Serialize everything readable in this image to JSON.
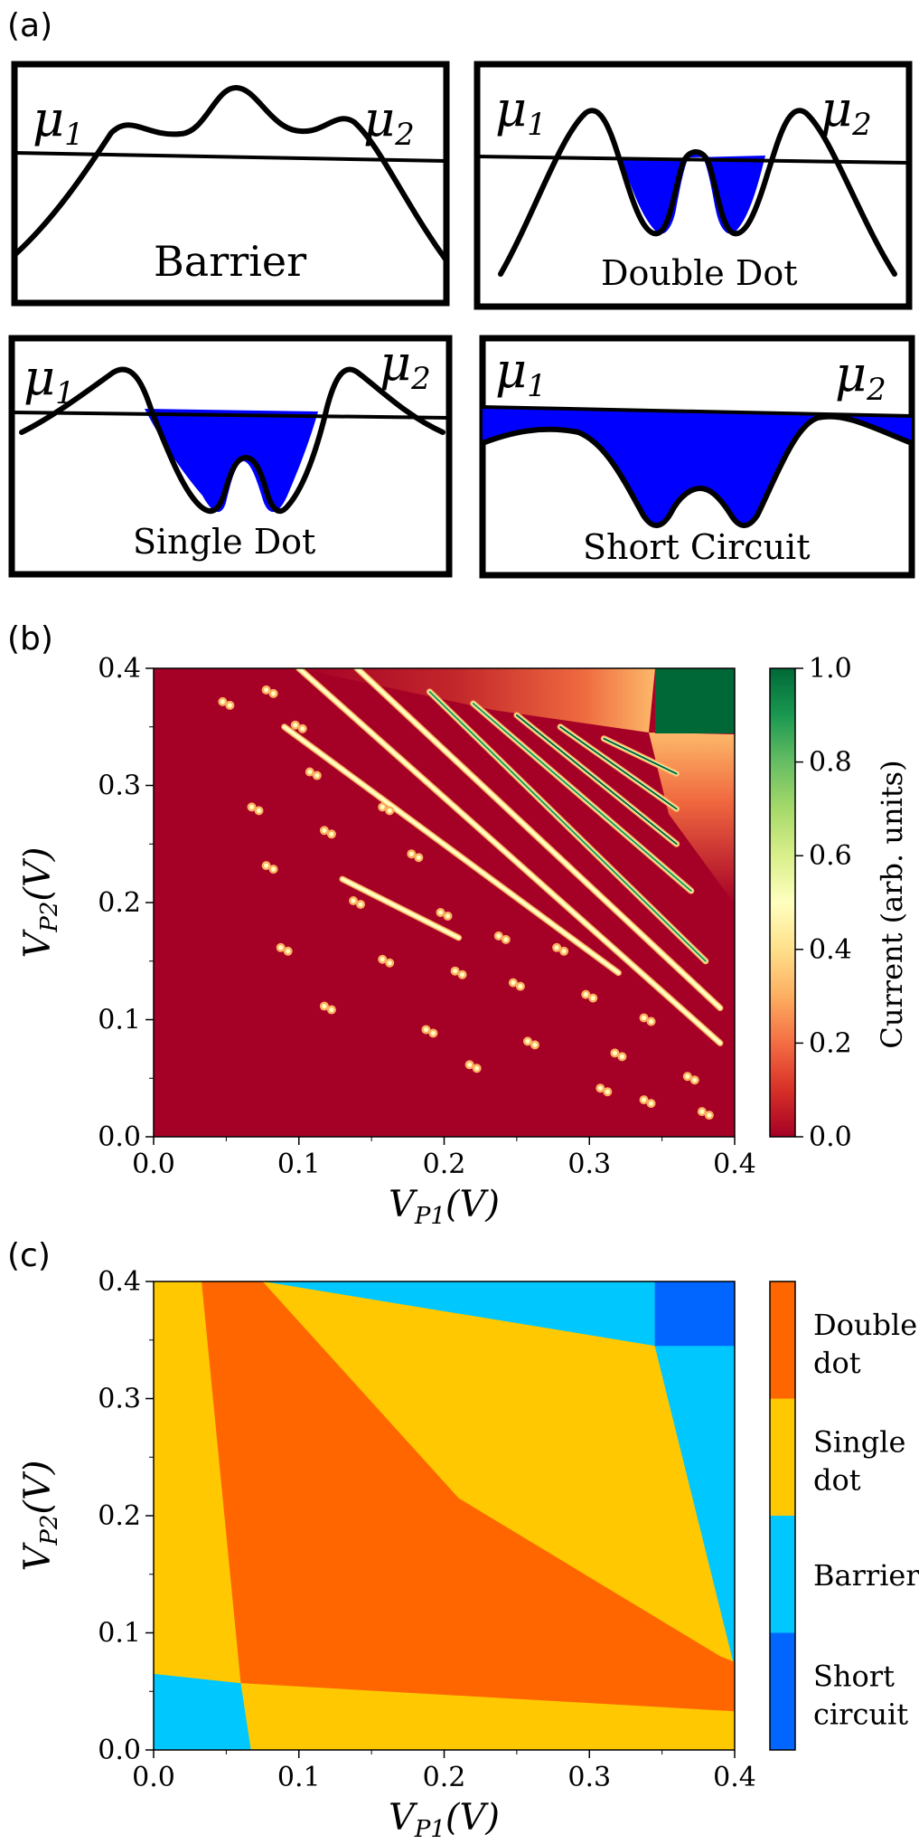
{
  "panel_a": {
    "label": "(a)",
    "mu_symbol": "μ",
    "sub_1": "1",
    "sub_2": "2",
    "boxes": {
      "barrier": "Barrier",
      "double_dot": "Double Dot",
      "single_dot": "Single Dot",
      "short_circuit": "Short Circuit"
    },
    "colors": {
      "fill": "#0000ff"
    }
  },
  "panel_b": {
    "label": "(b)",
    "colorbar_label": "Current (arb. units)",
    "colorbar_ticks": [
      "0.0",
      "0.2",
      "0.4",
      "0.6",
      "0.8",
      "1.0"
    ]
  },
  "panel_c": {
    "label": "(c)",
    "legend": [
      {
        "l1": "Double",
        "l2": "dot",
        "color": "#ff6600"
      },
      {
        "l1": "Single",
        "l2": "dot",
        "color": "#ffc800"
      },
      {
        "l1": "Barrier",
        "l2": "",
        "color": "#00c8ff"
      },
      {
        "l1": "Short",
        "l2": "circuit",
        "color": "#0066ff"
      }
    ]
  },
  "chart_data": [
    {
      "type": "heatmap",
      "title": "",
      "xlabel": "V_P1(V)",
      "ylabel": "V_P2(V)",
      "xlim": [
        0,
        0.4
      ],
      "ylim": [
        0,
        0.4
      ],
      "xticks": [
        "0.0",
        "0.1",
        "0.2",
        "0.3",
        "0.4"
      ],
      "yticks": [
        "0.0",
        "0.1",
        "0.2",
        "0.3",
        "0.4"
      ],
      "colorbar": {
        "label": "Current (arb. units)",
        "range": [
          0,
          1
        ],
        "colormap": "RdYlGn"
      },
      "features": {
        "diagonal_lines": [
          {
            "x1": 0.1,
            "y1": 0.4,
            "x2": 0.39,
            "y2": 0.08,
            "intensity": 0.55
          },
          {
            "x1": 0.09,
            "y1": 0.35,
            "x2": 0.32,
            "y2": 0.14,
            "intensity": 0.5
          },
          {
            "x1": 0.14,
            "y1": 0.4,
            "x2": 0.39,
            "y2": 0.11,
            "intensity": 0.5
          },
          {
            "x1": 0.19,
            "y1": 0.38,
            "x2": 0.38,
            "y2": 0.15,
            "intensity": 0.85
          },
          {
            "x1": 0.22,
            "y1": 0.37,
            "x2": 0.37,
            "y2": 0.21,
            "intensity": 0.9
          },
          {
            "x1": 0.25,
            "y1": 0.36,
            "x2": 0.36,
            "y2": 0.25,
            "intensity": 0.95
          },
          {
            "x1": 0.28,
            "y1": 0.35,
            "x2": 0.36,
            "y2": 0.28,
            "intensity": 0.95
          },
          {
            "x1": 0.31,
            "y1": 0.34,
            "x2": 0.36,
            "y2": 0.31,
            "intensity": 0.95
          },
          {
            "x1": 0.13,
            "y1": 0.22,
            "x2": 0.21,
            "y2": 0.17,
            "intensity": 0.6
          }
        ],
        "dots": [
          [
            0.08,
            0.38
          ],
          [
            0.05,
            0.37
          ],
          [
            0.1,
            0.35
          ],
          [
            0.11,
            0.31
          ],
          [
            0.16,
            0.28
          ],
          [
            0.07,
            0.28
          ],
          [
            0.12,
            0.26
          ],
          [
            0.18,
            0.24
          ],
          [
            0.08,
            0.23
          ],
          [
            0.14,
            0.2
          ],
          [
            0.2,
            0.19
          ],
          [
            0.24,
            0.17
          ],
          [
            0.09,
            0.16
          ],
          [
            0.28,
            0.16
          ],
          [
            0.16,
            0.15
          ],
          [
            0.21,
            0.14
          ],
          [
            0.25,
            0.13
          ],
          [
            0.3,
            0.12
          ],
          [
            0.12,
            0.11
          ],
          [
            0.34,
            0.1
          ],
          [
            0.19,
            0.09
          ],
          [
            0.26,
            0.08
          ],
          [
            0.32,
            0.07
          ],
          [
            0.22,
            0.06
          ],
          [
            0.37,
            0.05
          ],
          [
            0.31,
            0.04
          ],
          [
            0.34,
            0.03
          ],
          [
            0.38,
            0.02
          ]
        ],
        "high_corner": {
          "x": [
            0.35,
            0.4
          ],
          "y": [
            0.35,
            0.4
          ],
          "value": 1.0
        }
      }
    },
    {
      "type": "heatmap",
      "title": "",
      "xlabel": "V_P1(V)",
      "ylabel": "V_P2(V)",
      "xlim": [
        0,
        0.4
      ],
      "ylim": [
        0,
        0.4
      ],
      "xticks": [
        "0.0",
        "0.1",
        "0.2",
        "0.3",
        "0.4"
      ],
      "yticks": [
        "0.0",
        "0.1",
        "0.2",
        "0.3",
        "0.4"
      ],
      "categories": [
        "Double dot",
        "Single dot",
        "Barrier",
        "Short circuit"
      ],
      "regions": [
        {
          "class": "Single dot",
          "polygon": [
            [
              0,
              0
            ],
            [
              0.4,
              0
            ],
            [
              0.4,
              0.4
            ],
            [
              0,
              0.4
            ]
          ]
        },
        {
          "class": "Barrier",
          "polygon": [
            [
              0.075,
              0.4
            ],
            [
              0.4,
              0.4
            ],
            [
              0.4,
              0.07
            ],
            [
              0.345,
              0.345
            ]
          ]
        },
        {
          "class": "Single dot",
          "polygon": [
            [
              0.075,
              0.4
            ],
            [
              0.345,
              0.345
            ],
            [
              0.39,
              0.08
            ],
            [
              0.21,
              0.215
            ]
          ]
        },
        {
          "class": "Double dot",
          "polygon": [
            [
              0.033,
              0.4
            ],
            [
              0.075,
              0.4
            ],
            [
              0.21,
              0.215
            ],
            [
              0.39,
              0.08
            ],
            [
              0.4,
              0.075
            ],
            [
              0.4,
              0.033
            ],
            [
              0.06,
              0.057
            ]
          ]
        },
        {
          "class": "Barrier",
          "polygon": [
            [
              0,
              0
            ],
            [
              0.067,
              0
            ],
            [
              0.06,
              0.057
            ],
            [
              0,
              0.065
            ]
          ]
        },
        {
          "class": "Short circuit",
          "polygon": [
            [
              0.345,
              0.345
            ],
            [
              0.4,
              0.345
            ],
            [
              0.4,
              0.4
            ],
            [
              0.345,
              0.4
            ]
          ]
        }
      ]
    }
  ]
}
